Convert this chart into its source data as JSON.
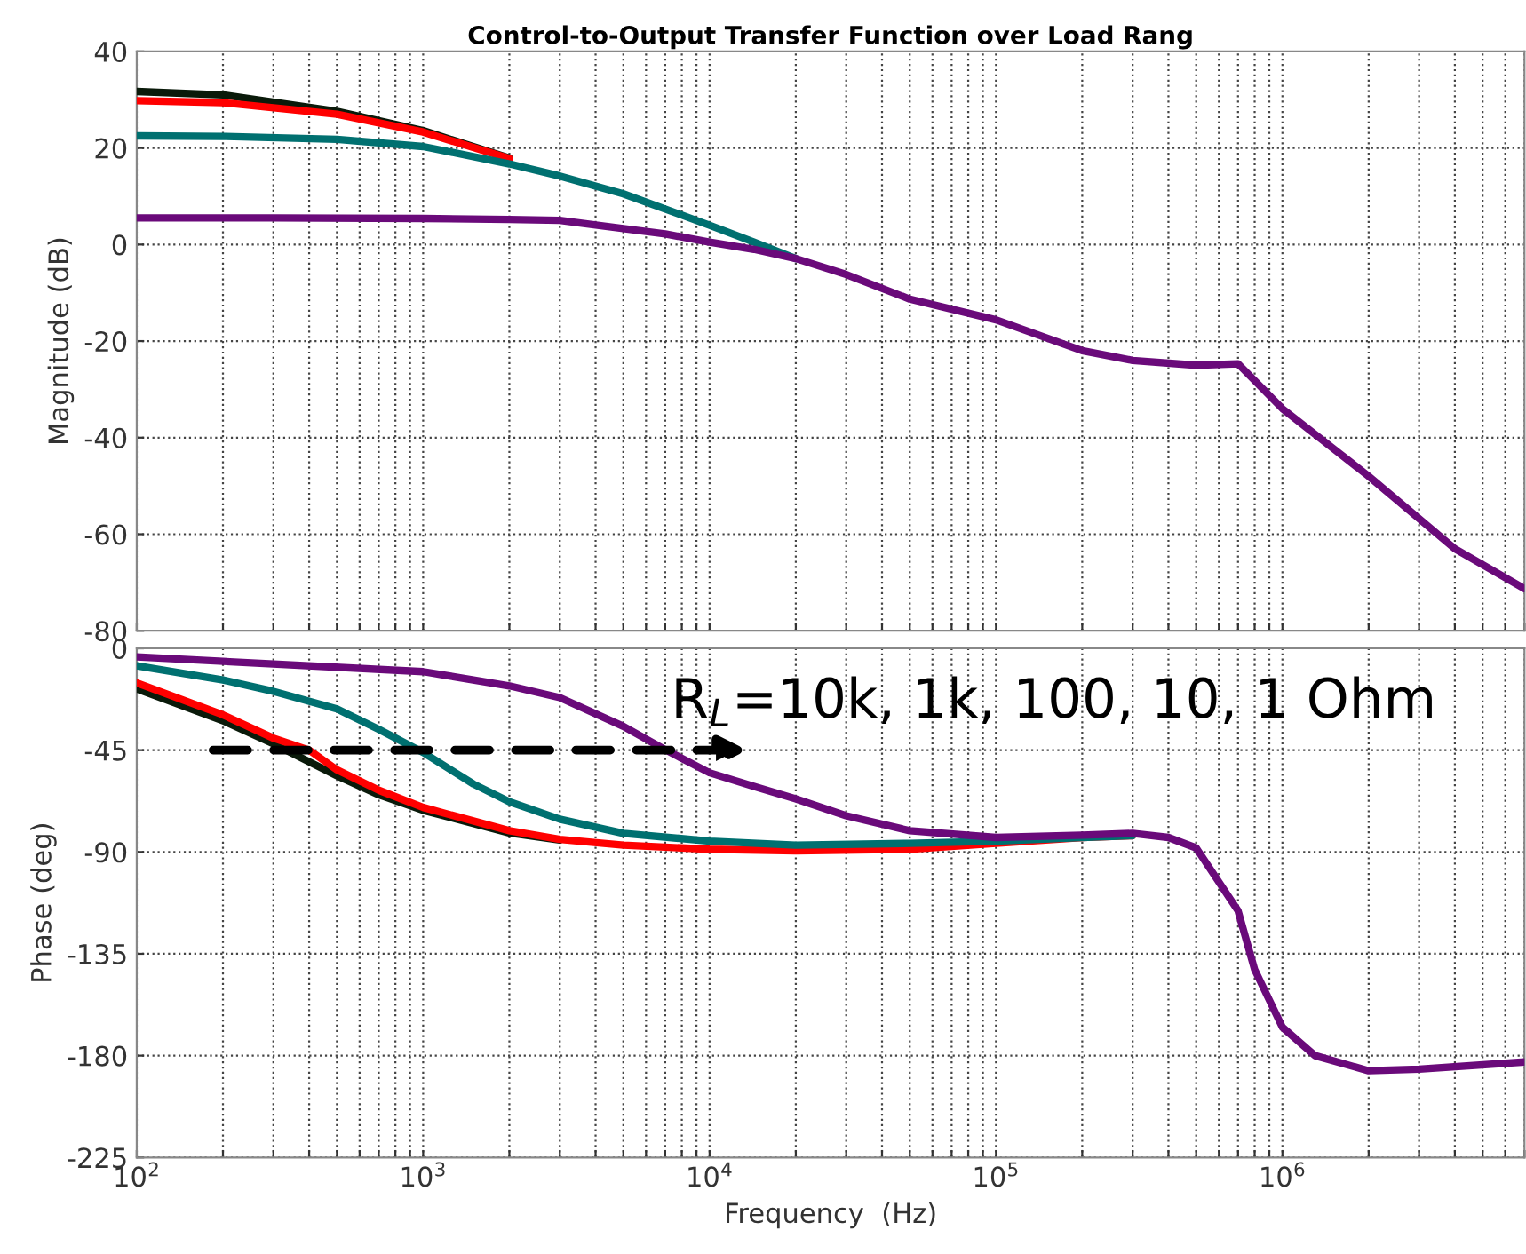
{
  "chart_data": [
    {
      "type": "line",
      "title": "Control-to-Output Transfer Function over Load Rang",
      "ylabel": "Magnitude (dB)",
      "log": "x",
      "grid": true,
      "tick_labels": "y",
      "line_style": "solid",
      "xlim": [
        100,
        7000000
      ],
      "ylim": [
        -80,
        40
      ],
      "yticks": [
        -80,
        -60,
        -40,
        -20,
        0,
        20,
        40
      ],
      "xticks": [
        100,
        200,
        300,
        400,
        500,
        600,
        700,
        800,
        900,
        1000,
        2000,
        3000,
        4000,
        5000,
        6000,
        7000,
        8000,
        9000,
        10000,
        20000,
        30000,
        40000,
        50000,
        60000,
        70000,
        80000,
        90000,
        100000,
        200000,
        300000,
        400000,
        500000,
        600000,
        700000,
        800000,
        900000,
        1000000,
        2000000,
        3000000,
        4000000,
        5000000,
        6000000,
        7000000
      ],
      "series": [
        {
          "color": "#0a1a0a",
          "x": [
            100,
            200,
            500,
            1000,
            2000
          ],
          "values": [
            31.7,
            31,
            27.6,
            23.6,
            17.9
          ]
        },
        {
          "color": "#ff0000",
          "x": [
            100,
            200,
            500,
            1000,
            2000
          ],
          "values": [
            29.8,
            29.4,
            27,
            23.3,
            17.8
          ]
        },
        {
          "color": "#007070",
          "x": [
            100,
            200,
            500,
            1000,
            2000,
            3000,
            5000,
            10000,
            14300,
            20000
          ],
          "values": [
            22.5,
            22.4,
            21.8,
            20.3,
            16.7,
            14.2,
            10.5,
            4,
            0.5,
            -2.9
          ]
        },
        {
          "color": "#6a0a7a",
          "x": [
            100,
            300,
            1000,
            2000,
            3000,
            5000,
            7000,
            10000,
            14300,
            20000,
            30000,
            50000,
            100000,
            200000,
            300000,
            500000,
            700000,
            1000000,
            2000000,
            4000000,
            7000000
          ],
          "values": [
            5.5,
            5.5,
            5.4,
            5.2,
            5.0,
            3.3,
            2.2,
            0.5,
            -1,
            -2.9,
            -6.2,
            -11.3,
            -15.6,
            -22,
            -24,
            -25,
            -24.7,
            -34,
            -48,
            -63,
            -71.3
          ]
        }
      ]
    },
    {
      "type": "line",
      "xlabel": "Frequency  (Hz)",
      "ylabel": "Phase (deg)",
      "log": "x",
      "grid": true,
      "line_style": "solid",
      "xlim": [
        100,
        7000000
      ],
      "ylim": [
        -225,
        0
      ],
      "yticks": [
        -225,
        -180,
        -135,
        -90,
        -45,
        0
      ],
      "xticks": [
        {
          "value": 100,
          "label": "10$^{2}$"
        },
        {
          "value": 200,
          "label": null
        },
        {
          "value": 300,
          "label": null
        },
        {
          "value": 400,
          "label": null
        },
        {
          "value": 500,
          "label": null
        },
        {
          "value": 600,
          "label": null
        },
        {
          "value": 700,
          "label": null
        },
        {
          "value": 800,
          "label": null
        },
        {
          "value": 900,
          "label": null
        },
        {
          "value": 1000,
          "label": "10$^{3}$"
        },
        {
          "value": 2000,
          "label": null
        },
        {
          "value": 3000,
          "label": null
        },
        {
          "value": 4000,
          "label": null
        },
        {
          "value": 5000,
          "label": null
        },
        {
          "value": 6000,
          "label": null
        },
        {
          "value": 7000,
          "label": null
        },
        {
          "value": 8000,
          "label": null
        },
        {
          "value": 9000,
          "label": null
        },
        {
          "value": 10000,
          "label": "10$^{4}$"
        },
        {
          "value": 20000,
          "label": null
        },
        {
          "value": 30000,
          "label": null
        },
        {
          "value": 40000,
          "label": null
        },
        {
          "value": 50000,
          "label": null
        },
        {
          "value": 60000,
          "label": null
        },
        {
          "value": 70000,
          "label": null
        },
        {
          "value": 80000,
          "label": null
        },
        {
          "value": 90000,
          "label": null
        },
        {
          "value": 100000,
          "label": "10$^{5}$"
        },
        {
          "value": 200000,
          "label": null
        },
        {
          "value": 300000,
          "label": null
        },
        {
          "value": 400000,
          "label": null
        },
        {
          "value": 500000,
          "label": null
        },
        {
          "value": 600000,
          "label": null
        },
        {
          "value": 700000,
          "label": null
        },
        {
          "value": 800000,
          "label": null
        },
        {
          "value": 900000,
          "label": null
        },
        {
          "value": 1000000,
          "label": "10$^{6}$"
        },
        {
          "value": 2000000,
          "label": null
        },
        {
          "value": 3000000,
          "label": null
        },
        {
          "value": 4000000,
          "label": null
        },
        {
          "value": 5000000,
          "label": null
        },
        {
          "value": 6000000,
          "label": null
        },
        {
          "value": 7000000,
          "label": null
        }
      ],
      "annotations": [
        "R$_{L}$=10k, 1k, 100, 10, 1 Ohm"
      ],
      "series": [
        {
          "color": "#0a1a0a",
          "x": [
            100,
            200,
            300,
            500,
            700,
            1000,
            2000,
            3000
          ],
          "values": [
            -17.9,
            -32,
            -42.2,
            -56.3,
            -64.7,
            -71.6,
            -81.6,
            -84.7
          ]
        },
        {
          "color": "#ff0000",
          "x": [
            100,
            200,
            300,
            400,
            500,
            700,
            1000,
            2000,
            3000,
            5000,
            10000,
            20000,
            50000,
            100000,
            200000,
            300000
          ],
          "values": [
            -15.3,
            -29.4,
            -39.7,
            -45,
            -53.7,
            -62.7,
            -70.3,
            -80.6,
            -84.4,
            -87,
            -88.8,
            -89.5,
            -88.8,
            -86.2,
            -83.6,
            -82.8
          ]
        },
        {
          "color": "#007070",
          "x": [
            100,
            200,
            300,
            500,
            700,
            1000,
            1500,
            2000,
            3000,
            5000,
            10000,
            20000,
            50000,
            100000,
            200000,
            300000
          ],
          "values": [
            -7.7,
            -14,
            -19,
            -26.8,
            -35.8,
            -46,
            -60,
            -67.8,
            -75.5,
            -81.8,
            -85.2,
            -87,
            -86.2,
            -85.2,
            -83.6,
            -82.8
          ]
        },
        {
          "color": "#6a0a7a",
          "x": [
            100,
            1000,
            2000,
            3000,
            5000,
            7000,
            10000,
            14300,
            20000,
            30000,
            50000,
            100000,
            200000,
            300000,
            400000,
            500000,
            700000,
            800000,
            1000000,
            1300000,
            2000000,
            3000000,
            7000000
          ],
          "values": [
            -3.8,
            -10.3,
            -16.6,
            -21.8,
            -34.5,
            -44.8,
            -55,
            -61,
            -66.5,
            -74,
            -80.6,
            -83.6,
            -82.6,
            -81.8,
            -83.6,
            -88.2,
            -116,
            -142,
            -167.5,
            -180,
            -186.7,
            -186,
            -182.8
          ]
        }
      ]
    }
  ]
}
